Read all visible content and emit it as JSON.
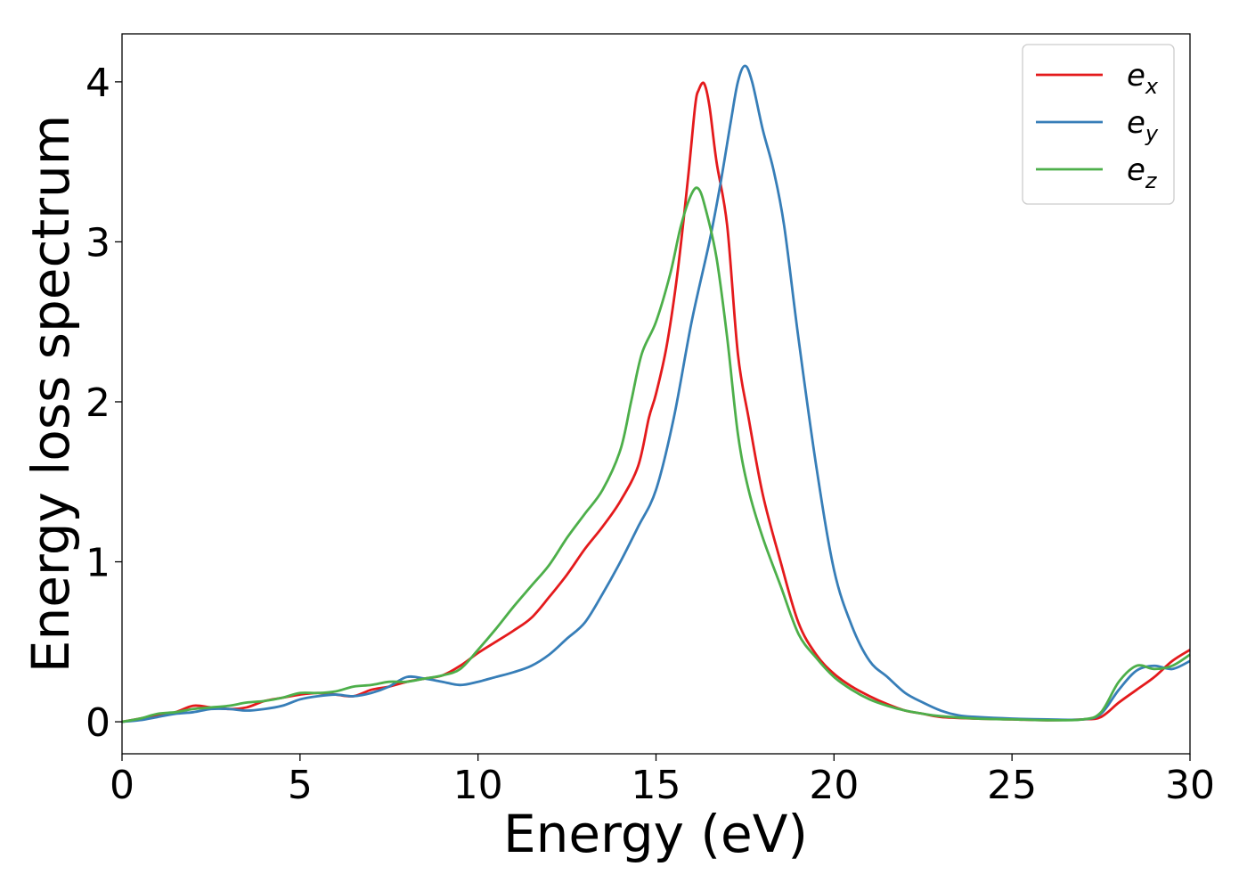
{
  "chart_data": {
    "type": "line",
    "title": "",
    "xlabel": "Energy (eV)",
    "ylabel": "Energy loss spectrum",
    "xlim": [
      0,
      30
    ],
    "ylim": [
      -0.2,
      4.3
    ],
    "xticks": [
      "0",
      "5",
      "10",
      "15",
      "20",
      "25",
      "30"
    ],
    "yticks": [
      "0",
      "1",
      "2",
      "3",
      "4"
    ],
    "grid": false,
    "legend_position": "top-right",
    "series": [
      {
        "name": "e",
        "subscript": "x",
        "color": "#e41a1c",
        "x": [
          0,
          0.5,
          1,
          1.5,
          2,
          2.5,
          3,
          3.5,
          4,
          4.5,
          5,
          5.5,
          6,
          6.5,
          7,
          7.5,
          8,
          8.5,
          9,
          9.5,
          10,
          10.5,
          11,
          11.5,
          12,
          12.5,
          13,
          13.5,
          14,
          14.5,
          14.8,
          15,
          15.3,
          15.6,
          15.9,
          16.1,
          16.2,
          16.35,
          16.5,
          16.7,
          17,
          17.3,
          17.6,
          18,
          18.5,
          19,
          19.5,
          20,
          20.5,
          21,
          21.5,
          22,
          22.5,
          23,
          24,
          25,
          26,
          27,
          27.5,
          28,
          28.5,
          29,
          29.5,
          30
        ],
        "y": [
          0,
          0.02,
          0.04,
          0.06,
          0.1,
          0.09,
          0.08,
          0.09,
          0.13,
          0.15,
          0.17,
          0.18,
          0.17,
          0.16,
          0.2,
          0.22,
          0.25,
          0.27,
          0.29,
          0.35,
          0.43,
          0.5,
          0.57,
          0.65,
          0.78,
          0.92,
          1.08,
          1.22,
          1.38,
          1.6,
          1.9,
          2.05,
          2.35,
          2.8,
          3.4,
          3.85,
          3.95,
          3.99,
          3.85,
          3.5,
          3.1,
          2.3,
          1.9,
          1.42,
          1.0,
          0.62,
          0.42,
          0.3,
          0.22,
          0.16,
          0.11,
          0.07,
          0.05,
          0.03,
          0.02,
          0.015,
          0.01,
          0.015,
          0.03,
          0.12,
          0.2,
          0.28,
          0.38,
          0.45
        ]
      },
      {
        "name": "e",
        "subscript": "y",
        "color": "#377eb8",
        "x": [
          0,
          0.5,
          1,
          1.5,
          2,
          2.5,
          3,
          3.5,
          4,
          4.5,
          5,
          5.5,
          6,
          6.5,
          7,
          7.5,
          8,
          8.5,
          9,
          9.5,
          10,
          10.5,
          11,
          11.5,
          12,
          12.5,
          13,
          13.5,
          14,
          14.5,
          15,
          15.5,
          16,
          16.5,
          16.8,
          17.1,
          17.3,
          17.5,
          17.7,
          18,
          18.3,
          18.6,
          19,
          19.5,
          20,
          20.5,
          21,
          21.5,
          22,
          22.5,
          23,
          23.5,
          24,
          25,
          26,
          27,
          27.5,
          28,
          28.5,
          29,
          29.5,
          30
        ],
        "y": [
          0,
          0.01,
          0.03,
          0.05,
          0.06,
          0.08,
          0.08,
          0.07,
          0.08,
          0.1,
          0.14,
          0.16,
          0.17,
          0.16,
          0.18,
          0.22,
          0.28,
          0.27,
          0.25,
          0.23,
          0.25,
          0.28,
          0.31,
          0.35,
          0.42,
          0.52,
          0.62,
          0.8,
          1.0,
          1.22,
          1.45,
          1.9,
          2.5,
          3.0,
          3.35,
          3.75,
          4.0,
          4.1,
          4.0,
          3.7,
          3.45,
          3.1,
          2.4,
          1.6,
          0.95,
          0.6,
          0.38,
          0.28,
          0.18,
          0.12,
          0.07,
          0.04,
          0.03,
          0.02,
          0.015,
          0.015,
          0.05,
          0.2,
          0.32,
          0.35,
          0.33,
          0.38
        ]
      },
      {
        "name": "e",
        "subscript": "z",
        "color": "#4daf4a",
        "x": [
          0,
          0.5,
          1,
          1.5,
          2,
          2.5,
          3,
          3.5,
          4,
          4.5,
          5,
          5.5,
          6,
          6.5,
          7,
          7.5,
          8,
          8.5,
          9,
          9.5,
          10,
          10.5,
          11,
          11.5,
          12,
          12.5,
          13,
          13.5,
          14,
          14.3,
          14.6,
          15,
          15.4,
          15.7,
          16,
          16.2,
          16.4,
          16.7,
          17,
          17.3,
          17.6,
          18,
          18.5,
          19,
          19.5,
          20,
          20.5,
          21,
          21.5,
          22,
          22.5,
          23,
          24,
          25,
          26,
          27,
          27.5,
          28,
          28.5,
          29,
          29.5,
          30
        ],
        "y": [
          0,
          0.02,
          0.05,
          0.06,
          0.08,
          0.09,
          0.1,
          0.12,
          0.13,
          0.15,
          0.18,
          0.18,
          0.19,
          0.22,
          0.23,
          0.25,
          0.25,
          0.27,
          0.29,
          0.33,
          0.45,
          0.58,
          0.72,
          0.85,
          0.98,
          1.15,
          1.3,
          1.45,
          1.7,
          2.0,
          2.3,
          2.5,
          2.8,
          3.1,
          3.3,
          3.33,
          3.2,
          2.9,
          2.4,
          1.8,
          1.45,
          1.15,
          0.85,
          0.55,
          0.4,
          0.28,
          0.2,
          0.14,
          0.1,
          0.07,
          0.05,
          0.035,
          0.02,
          0.015,
          0.01,
          0.015,
          0.06,
          0.25,
          0.35,
          0.33,
          0.35,
          0.42
        ]
      }
    ]
  }
}
